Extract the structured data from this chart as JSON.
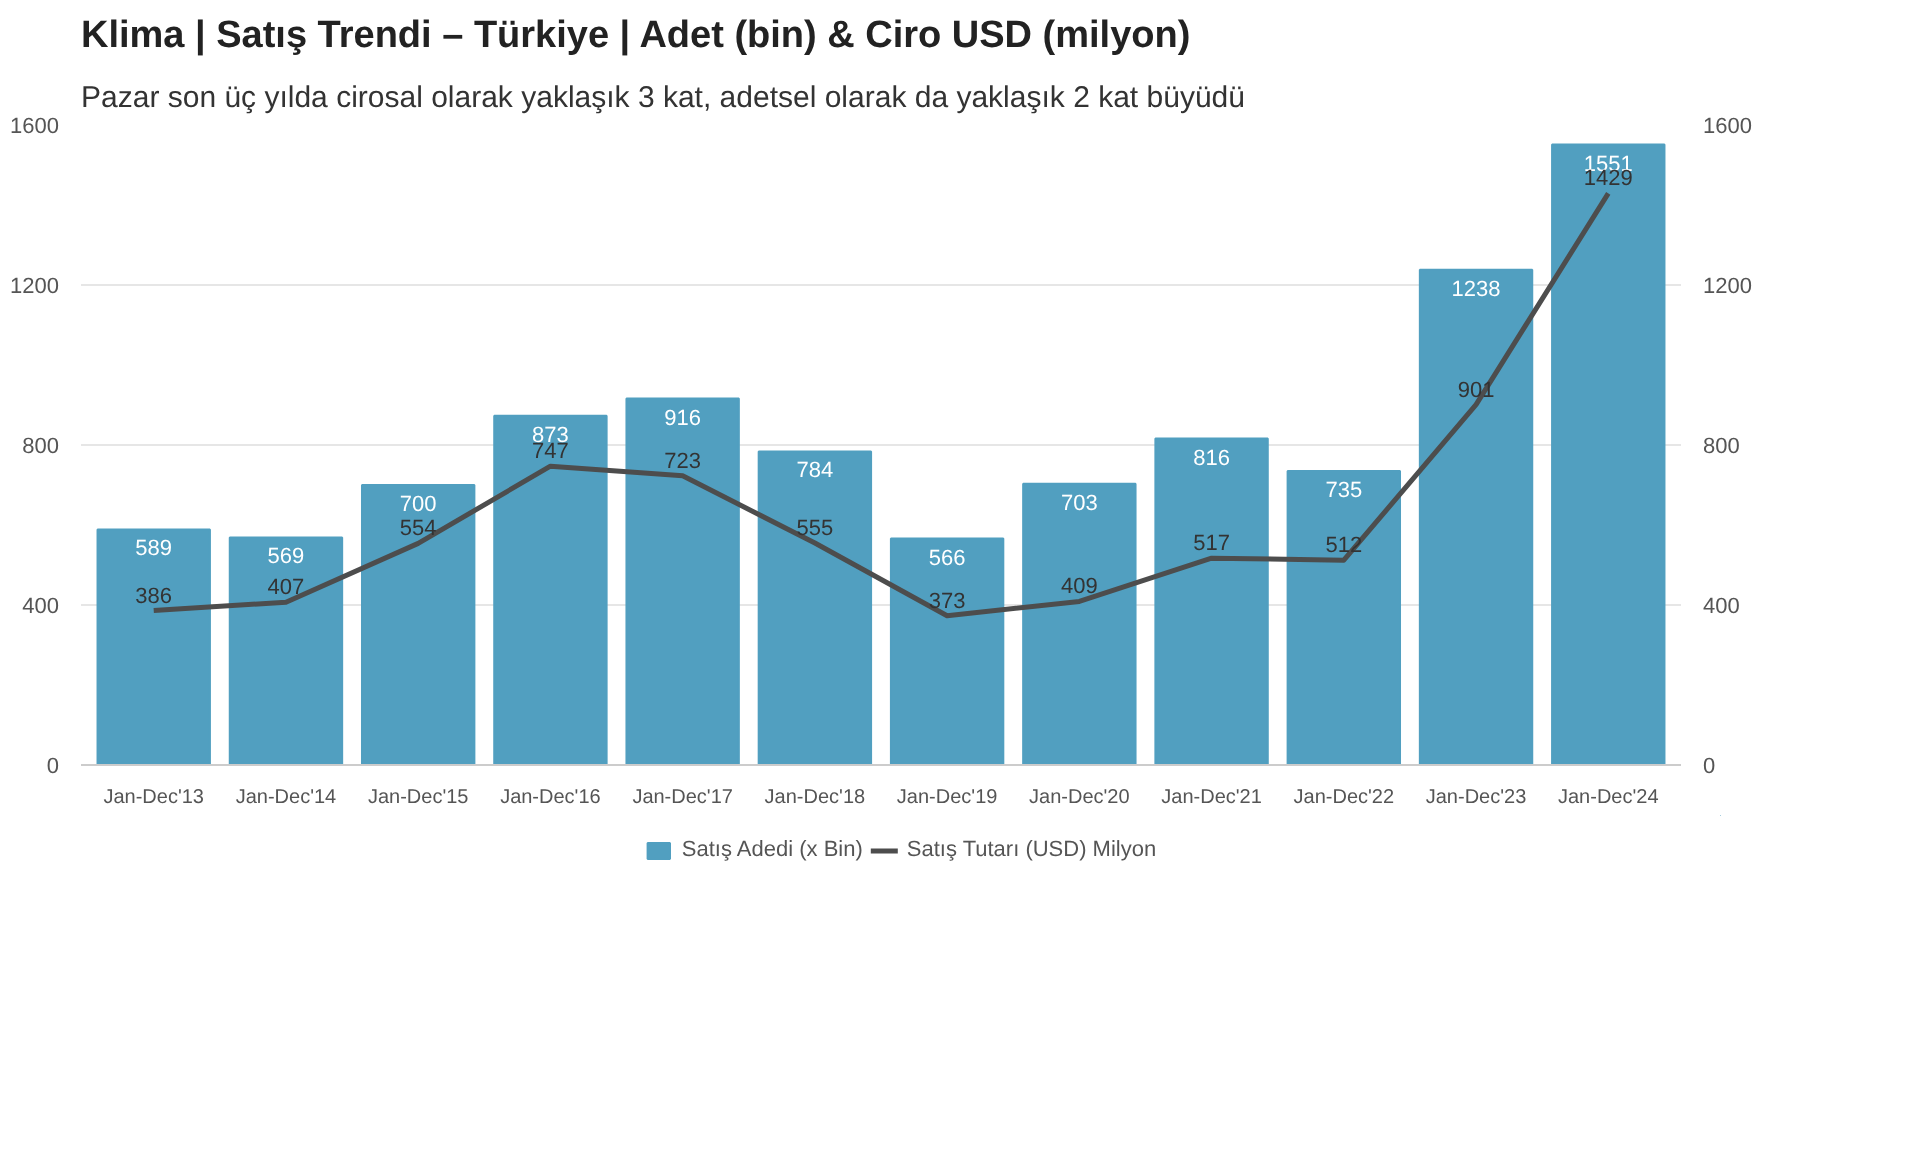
{
  "chart_data": {
    "type": "bar",
    "title": "Klima | Satış Trendi – Türkiye | Adet (bin) & Ciro USD (milyon)",
    "subtitle": "Pazar son üç yılda cirosal olarak yaklaşık 3 kat, adetsel olarak da yaklaşık 2 kat büyüdü",
    "categories": [
      "Jan-Dec'13",
      "Jan-Dec'14",
      "Jan-Dec'15",
      "Jan-Dec'16",
      "Jan-Dec'17",
      "Jan-Dec'18",
      "Jan-Dec'19",
      "Jan-Dec'20",
      "Jan-Dec'21",
      "Jan-Dec'22",
      "Jan-Dec'23",
      "Jan-Dec'24"
    ],
    "series": [
      {
        "name": "Satış Adedi (x Bin)",
        "color": "#519fc0",
        "values": [
          589,
          569,
          700,
          873,
          916,
          784,
          566,
          703,
          816,
          735,
          1238,
          1551
        ]
      },
      {
        "name": "Satış Tutarı (USD) Milyon",
        "type": "line",
        "axis": "y2",
        "color": "#4d4d4d",
        "values": [
          386,
          407,
          554,
          747,
          723,
          555,
          373,
          409,
          517,
          512,
          901,
          1429
        ]
      }
    ],
    "ylim": [
      0,
      1600
    ],
    "yticks": [
      0,
      400,
      800,
      1200,
      1600
    ],
    "y2lim": [
      0,
      1600
    ],
    "y2ticks": [
      0,
      400,
      800,
      1200,
      1600
    ],
    "grid": "y",
    "legend": "bottom",
    "data_labels": true,
    "marker": "none",
    "line_style": "solid"
  }
}
